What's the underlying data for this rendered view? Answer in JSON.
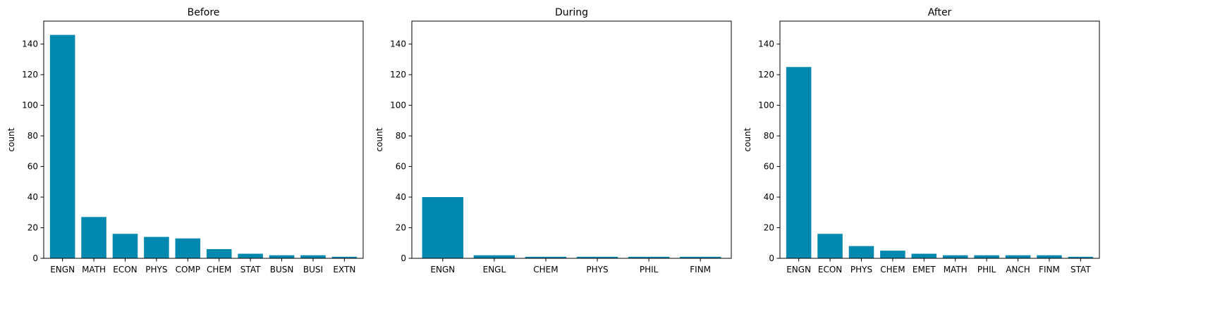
{
  "colors": {
    "bar": "#0088ae",
    "axis": "#000000",
    "background": "#ffffff"
  },
  "chart_data": [
    {
      "type": "bar",
      "title": "Before",
      "xlabel": "",
      "ylabel": "count",
      "ylim": [
        0,
        155
      ],
      "yticks": [
        0,
        20,
        40,
        60,
        80,
        100,
        120,
        140
      ],
      "grid": false,
      "categories": [
        "ENGN",
        "MATH",
        "ECON",
        "PHYS",
        "COMP",
        "CHEM",
        "STAT",
        "BUSN",
        "BUSI",
        "EXTN"
      ],
      "values": [
        146,
        27,
        16,
        14,
        13,
        6,
        3,
        2,
        2,
        1
      ]
    },
    {
      "type": "bar",
      "title": "During",
      "xlabel": "",
      "ylabel": "count",
      "ylim": [
        0,
        155
      ],
      "yticks": [
        0,
        20,
        40,
        60,
        80,
        100,
        120,
        140
      ],
      "grid": false,
      "categories": [
        "ENGN",
        "ENGL",
        "CHEM",
        "PHYS",
        "PHIL",
        "FINM"
      ],
      "values": [
        40,
        2,
        1,
        1,
        1,
        1
      ]
    },
    {
      "type": "bar",
      "title": "After",
      "xlabel": "",
      "ylabel": "count",
      "ylim": [
        0,
        155
      ],
      "yticks": [
        0,
        20,
        40,
        60,
        80,
        100,
        120,
        140
      ],
      "grid": false,
      "categories": [
        "ENGN",
        "ECON",
        "PHYS",
        "CHEM",
        "EMET",
        "MATH",
        "PHIL",
        "ANCH",
        "FINM",
        "STAT"
      ],
      "values": [
        125,
        16,
        8,
        5,
        3,
        2,
        2,
        2,
        2,
        1
      ]
    }
  ]
}
